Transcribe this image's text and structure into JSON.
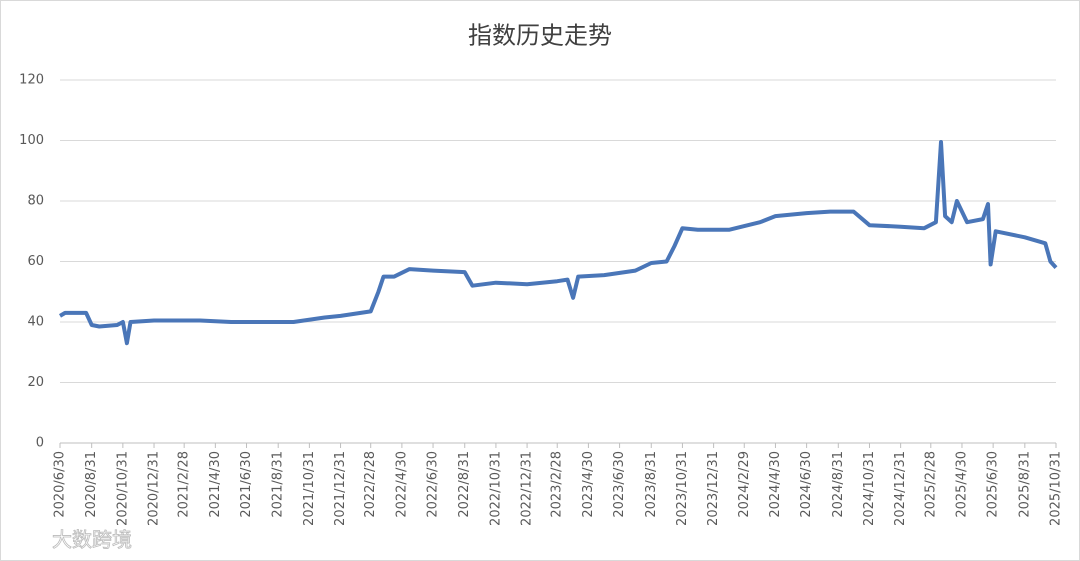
{
  "chart_data": {
    "type": "line",
    "title": "指数历史走势",
    "watermark": "大数跨境",
    "color": "#4a76b8",
    "grid": true,
    "ylim": [
      0,
      120
    ],
    "yticks": [
      0,
      20,
      40,
      60,
      80,
      100,
      120
    ],
    "xlim": [
      "2020/6/30",
      "2025/10/31"
    ],
    "xticks": [
      "2020/6/30",
      "2020/8/31",
      "2020/10/31",
      "2020/12/31",
      "2021/2/28",
      "2021/4/30",
      "2021/6/30",
      "2021/8/31",
      "2021/10/31",
      "2021/12/31",
      "2022/2/28",
      "2022/4/30",
      "2022/6/30",
      "2022/8/31",
      "2022/10/31",
      "2022/12/31",
      "2023/2/28",
      "2023/4/30",
      "2023/6/30",
      "2023/8/31",
      "2023/10/31",
      "2023/12/31",
      "2024/2/29",
      "2024/4/30",
      "2024/6/30",
      "2024/8/31",
      "2024/10/31",
      "2024/12/31",
      "2025/2/28",
      "2025/4/30",
      "2025/6/30",
      "2025/8/31",
      "2025/10/31"
    ],
    "x": [
      "2020/6/30",
      "2020/7/10",
      "2020/7/31",
      "2020/8/20",
      "2020/8/31",
      "2020/9/15",
      "2020/10/20",
      "2020/10/31",
      "2020/11/8",
      "2020/11/15",
      "2020/12/31",
      "2021/3/31",
      "2021/5/31",
      "2021/7/31",
      "2021/9/30",
      "2021/11/30",
      "2021/12/31",
      "2022/2/28",
      "2022/3/15",
      "2022/3/25",
      "2022/4/15",
      "2022/5/15",
      "2022/6/30",
      "2022/8/31",
      "2022/9/15",
      "2022/10/31",
      "2022/12/31",
      "2023/2/28",
      "2023/3/20",
      "2023/3/31",
      "2023/4/10",
      "2023/5/31",
      "2023/7/31",
      "2023/8/31",
      "2023/9/30",
      "2023/10/15",
      "2023/10/31",
      "2023/11/30",
      "2024/1/31",
      "2024/3/31",
      "2024/4/30",
      "2024/6/30",
      "2024/8/15",
      "2024/9/30",
      "2024/10/31",
      "2024/12/31",
      "2025/2/15",
      "2025/3/10",
      "2025/3/20",
      "2025/3/28",
      "2025/4/10",
      "2025/4/20",
      "2025/5/10",
      "2025/6/10",
      "2025/6/20",
      "2025/6/25",
      "2025/7/5",
      "2025/8/31",
      "2025/10/10",
      "2025/10/20",
      "2025/10/31"
    ],
    "values": [
      42,
      43,
      43,
      43,
      39,
      38.5,
      39,
      40,
      33,
      40,
      40.5,
      40.5,
      40,
      40,
      40,
      41.5,
      42,
      43.5,
      50,
      55,
      55,
      57.5,
      57,
      56.5,
      52,
      53,
      52.5,
      53.5,
      54,
      48,
      55,
      55.5,
      57,
      59.5,
      60,
      65,
      71,
      70.5,
      70.5,
      73,
      75,
      76,
      76.5,
      76.5,
      72,
      71.5,
      71,
      73,
      99.5,
      75,
      73,
      80,
      73,
      74,
      79,
      59,
      70,
      68,
      66,
      60,
      58
    ]
  }
}
